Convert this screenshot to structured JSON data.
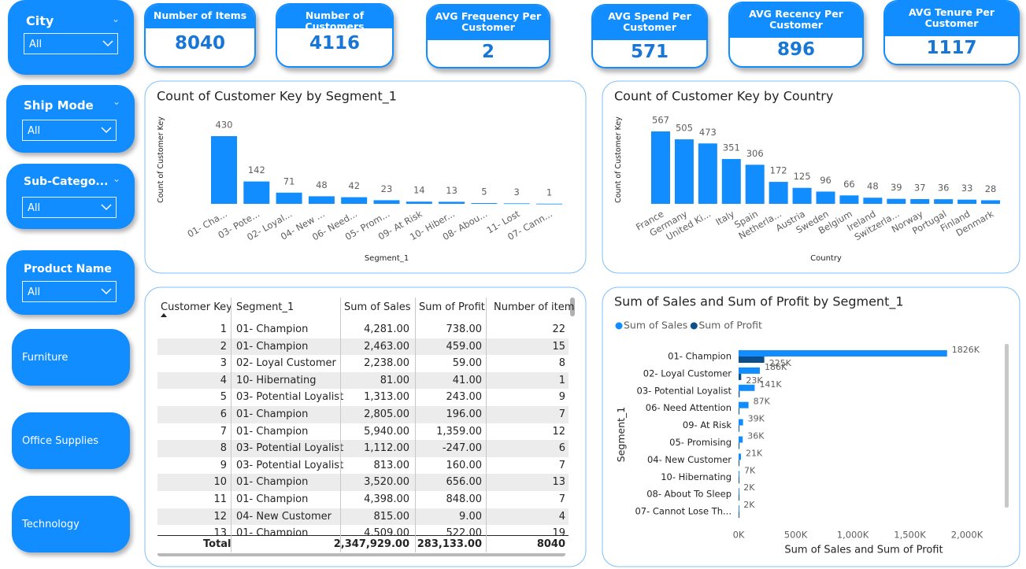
{
  "slicers": [
    {
      "title": "City",
      "value": "All"
    },
    {
      "title": "Ship Mode",
      "value": "All"
    },
    {
      "title": "Sub-Catego...",
      "value": "All"
    },
    {
      "title": "Product Name",
      "value": "All"
    }
  ],
  "buttons": [
    "Furniture",
    "Office Supplies",
    "Technology"
  ],
  "kpis": [
    {
      "title": "Number of Items",
      "value": 8040
    },
    {
      "title": "Number of Customers",
      "value": 4116
    },
    {
      "title": "AVG Frequency Per Customer",
      "value": 2
    },
    {
      "title": "AVG Spend Per Customer",
      "value": 571
    },
    {
      "title": "AVG Recency Per Customer",
      "value": 896
    },
    {
      "title": "AVG Tenure Per Customer",
      "value": 1117
    }
  ],
  "chart_data": [
    {
      "type": "bar",
      "title": "Count of Customer Key by Segment_1",
      "x_label": "Segment_1",
      "y_label": "Count of Customer Key",
      "color": "#118dff",
      "categories": [
        "01- Cha...",
        "03- Pote...",
        "02- Loyal...",
        "04- New ...",
        "06- Need...",
        "05- Prom...",
        "09- At Risk",
        "10- Hiber...",
        "08- Abou...",
        "11- Lost",
        "07- Cann..."
      ],
      "values": [
        430,
        142,
        71,
        48,
        42,
        23,
        14,
        13,
        5,
        3,
        1
      ]
    },
    {
      "type": "bar",
      "title": "Count of Customer Key by Country",
      "x_label": "Country",
      "y_label": "Count of Customer Key",
      "color": "#118dff",
      "categories": [
        "France",
        "Germany",
        "United Ki...",
        "Italy",
        "Spain",
        "Netherla...",
        "Austria",
        "Sweden",
        "Belgium",
        "Ireland",
        "Switzerla...",
        "Norway",
        "Portugal",
        "Finland",
        "Denmark"
      ],
      "values": [
        567,
        505,
        473,
        351,
        306,
        172,
        125,
        96,
        66,
        48,
        39,
        37,
        36,
        33,
        28
      ]
    },
    {
      "type": "hbar",
      "title": "Sum of Sales and Sum of Profit by Segment_1",
      "x_label": "Sum of Sales and Sum of Profit",
      "y_label": "Segment_1",
      "categories": [
        "01- Champion",
        "02- Loyal Customer",
        "03- Potential Loyalist",
        "06- Need Attention",
        "09- At Risk",
        "05- Promising",
        "04- New Customer",
        "10- Hibernating",
        "08- About To Sleep",
        "07- Cannot Lose Th..."
      ],
      "series": [
        {
          "name": "Sum of Sales",
          "color": "#118dff",
          "values": [
            1826000,
            186000,
            141000,
            87000,
            39000,
            36000,
            21000,
            7000,
            2000,
            2000
          ],
          "value_labels": [
            "1826K",
            "186K",
            "141K",
            "87K",
            "39K",
            "36K",
            "21K",
            "7K",
            "2K",
            "2K"
          ]
        },
        {
          "name": "Sum of Profit",
          "color": "#0d4f8b",
          "values": [
            225000,
            23000,
            9000,
            6000,
            3000,
            3000,
            2000,
            500,
            200,
            300
          ],
          "value_labels": [
            "225K",
            "23K",
            null,
            null,
            null,
            null,
            null,
            null,
            null,
            null
          ]
        }
      ],
      "xlim": [
        0,
        2000000
      ],
      "xticks": [
        {
          "value": 0,
          "label": "0K"
        },
        {
          "value": 500000,
          "label": "500K"
        },
        {
          "value": 1000000,
          "label": "1,000K"
        },
        {
          "value": 1500000,
          "label": "1,500K"
        },
        {
          "value": 2000000,
          "label": "2,000K"
        }
      ],
      "legend": "top-left"
    }
  ],
  "table": {
    "columns": [
      "Customer Key",
      "Segment_1",
      "Sum of Sales",
      "Sum of Profit",
      "Number of item"
    ],
    "rows": [
      [
        1,
        "01- Champion",
        "4,281.00",
        "738.00",
        "22"
      ],
      [
        2,
        "01- Champion",
        "2,463.00",
        "459.00",
        "15"
      ],
      [
        3,
        "02- Loyal Customer",
        "2,238.00",
        "59.00",
        "8"
      ],
      [
        4,
        "10- Hibernating",
        "81.00",
        "41.00",
        "1"
      ],
      [
        5,
        "03- Potential Loyalist",
        "1,313.00",
        "243.00",
        "9"
      ],
      [
        6,
        "01- Champion",
        "2,805.00",
        "196.00",
        "7"
      ],
      [
        7,
        "01- Champion",
        "5,940.00",
        "1,359.00",
        "12"
      ],
      [
        8,
        "03- Potential Loyalist",
        "1,112.00",
        "-247.00",
        "6"
      ],
      [
        9,
        "03- Potential Loyalist",
        "813.00",
        "160.00",
        "7"
      ],
      [
        10,
        "01- Champion",
        "3,520.00",
        "656.00",
        "13"
      ],
      [
        11,
        "01- Champion",
        "4,398.00",
        "848.00",
        "7"
      ],
      [
        12,
        "04- New Customer",
        "815.00",
        "9.00",
        "4"
      ],
      [
        13,
        "01- Champion",
        "4,509.00",
        "522.00",
        "19"
      ]
    ],
    "total": {
      "label": "Total",
      "sales": "2,347,929.00",
      "profit": "283,133.00",
      "items": "8040"
    }
  }
}
